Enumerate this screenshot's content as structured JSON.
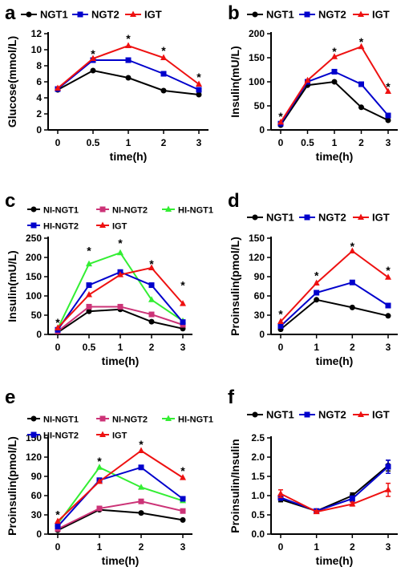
{
  "chart_data": [
    {
      "panel_label": "a",
      "type": "line",
      "x": [
        "0",
        "0.5",
        "1",
        "2",
        "3"
      ],
      "xlabel": "time(h)",
      "ylabel": "Glucose(mmol/L)",
      "ylim": [
        0,
        12
      ],
      "yticks": [
        0,
        2,
        4,
        6,
        8,
        10,
        12
      ],
      "series": [
        {
          "name": "NGT1",
          "color": "#000000",
          "marker": "circle",
          "values": [
            5.0,
            7.4,
            6.5,
            4.9,
            4.4
          ]
        },
        {
          "name": "NGT2",
          "color": "#0000cc",
          "marker": "square",
          "values": [
            5.1,
            8.7,
            8.7,
            7.0,
            5.0
          ]
        },
        {
          "name": "IGT",
          "color": "#ee1111",
          "marker": "triangle",
          "values": [
            5.2,
            8.9,
            10.5,
            9.0,
            5.7
          ]
        }
      ],
      "annotations": [
        {
          "text": "*",
          "x": 1,
          "y": 9.6
        },
        {
          "text": "*",
          "x": 2,
          "y": 11.5
        },
        {
          "text": "*",
          "x": 3,
          "y": 10.0
        },
        {
          "text": "*",
          "x": 4,
          "y": 6.7
        }
      ],
      "legend": "top",
      "grid": false
    },
    {
      "panel_label": "b",
      "type": "line",
      "x": [
        "0",
        "0.5",
        "1",
        "2",
        "3"
      ],
      "xlabel": "time(h)",
      "ylabel": "Insulin(mU/L)",
      "ylim": [
        0,
        200
      ],
      "yticks": [
        0,
        50,
        100,
        150,
        200
      ],
      "series": [
        {
          "name": "NGT1",
          "color": "#000000",
          "marker": "circle",
          "values": [
            10,
            93,
            100,
            47,
            20
          ]
        },
        {
          "name": "NGT2",
          "color": "#0000cc",
          "marker": "square",
          "values": [
            13,
            100,
            121,
            95,
            30
          ]
        },
        {
          "name": "IGT",
          "color": "#ee1111",
          "marker": "triangle",
          "values": [
            16,
            103,
            152,
            173,
            80
          ]
        }
      ],
      "annotations": [
        {
          "text": "*",
          "x": 0,
          "y": 30
        },
        {
          "text": "*",
          "x": 2,
          "y": 165
        },
        {
          "text": "*",
          "x": 3,
          "y": 185
        },
        {
          "text": "*",
          "x": 4,
          "y": 92
        }
      ],
      "legend": "top",
      "grid": false
    },
    {
      "panel_label": "c",
      "type": "line",
      "x": [
        "0",
        "0.5",
        "1",
        "2",
        "3"
      ],
      "xlabel": "time(h)",
      "ylabel": "Insulin(mU/L)",
      "ylim": [
        0,
        250
      ],
      "yticks": [
        0,
        50,
        100,
        150,
        200,
        250
      ],
      "series": [
        {
          "name": "NI-NGT1",
          "color": "#000000",
          "marker": "circle",
          "values": [
            5,
            60,
            65,
            33,
            15
          ]
        },
        {
          "name": "NI-NGT2",
          "color": "#cc3377",
          "marker": "square",
          "values": [
            8,
            72,
            72,
            52,
            25
          ]
        },
        {
          "name": "HI-NGT1",
          "color": "#33ee33",
          "marker": "triangle",
          "values": [
            15,
            183,
            212,
            90,
            35
          ]
        },
        {
          "name": "HI-NGT2",
          "color": "#0000cc",
          "marker": "square",
          "values": [
            12,
            128,
            162,
            128,
            32
          ]
        },
        {
          "name": "IGT",
          "color": "#ee1111",
          "marker": "triangle",
          "values": [
            17,
            103,
            155,
            173,
            80
          ]
        }
      ],
      "annotations": [
        {
          "text": "*",
          "x": 0,
          "y": 33
        },
        {
          "text": "*",
          "x": 1,
          "y": 220
        },
        {
          "text": "*",
          "x": 2,
          "y": 240
        },
        {
          "text": "*",
          "x": 3,
          "y": 185
        },
        {
          "text": "*",
          "x": 4,
          "y": 130
        }
      ],
      "legend": "top",
      "grid": false
    },
    {
      "panel_label": "d",
      "type": "line",
      "x": [
        "0",
        "1",
        "2",
        "3"
      ],
      "xlabel": "time(h)",
      "ylabel": "Proinsulin(pmol/L)",
      "ylim": [
        0,
        150
      ],
      "yticks": [
        0,
        30,
        60,
        90,
        120,
        150
      ],
      "series": [
        {
          "name": "NGT1",
          "color": "#000000",
          "marker": "circle",
          "values": [
            8,
            54,
            42,
            29
          ]
        },
        {
          "name": "NGT2",
          "color": "#0000cc",
          "marker": "square",
          "values": [
            13,
            65,
            81,
            45
          ]
        },
        {
          "name": "IGT",
          "color": "#ee1111",
          "marker": "triangle",
          "values": [
            20,
            80,
            130,
            89
          ]
        }
      ],
      "annotations": [
        {
          "text": "*",
          "x": 0,
          "y": 33
        },
        {
          "text": "*",
          "x": 1,
          "y": 93
        },
        {
          "text": "*",
          "x": 2,
          "y": 139
        },
        {
          "text": "*",
          "x": 3,
          "y": 101
        }
      ],
      "legend": "top",
      "grid": false
    },
    {
      "panel_label": "e",
      "type": "line",
      "x": [
        "0",
        "1",
        "2",
        "3"
      ],
      "xlabel": "time(h)",
      "ylabel": "Proinsulin(pmol/L)",
      "ylim": [
        0,
        150
      ],
      "yticks": [
        0,
        30,
        60,
        90,
        120,
        150
      ],
      "series": [
        {
          "name": "NI-NGT1",
          "color": "#000000",
          "marker": "circle",
          "values": [
            6,
            38,
            33,
            22
          ]
        },
        {
          "name": "NI-NGT2",
          "color": "#cc3377",
          "marker": "square",
          "values": [
            8,
            40,
            51,
            36
          ]
        },
        {
          "name": "HI-NGT1",
          "color": "#33ee33",
          "marker": "triangle",
          "values": [
            16,
            104,
            73,
            52
          ]
        },
        {
          "name": "HI-NGT2",
          "color": "#0000cc",
          "marker": "square",
          "values": [
            12,
            84,
            104,
            55
          ]
        },
        {
          "name": "IGT",
          "color": "#ee1111",
          "marker": "triangle",
          "values": [
            20,
            82,
            130,
            88
          ]
        }
      ],
      "annotations": [
        {
          "text": "*",
          "x": 0,
          "y": 32
        },
        {
          "text": "*",
          "x": 1,
          "y": 115
        },
        {
          "text": "*",
          "x": 2,
          "y": 141
        },
        {
          "text": "*",
          "x": 3,
          "y": 100
        }
      ],
      "legend": "top",
      "grid": false
    },
    {
      "panel_label": "f",
      "type": "line",
      "x": [
        "0",
        "1",
        "2",
        "3"
      ],
      "xlabel": "time(h)",
      "ylabel": "Proinsulin/Insulin",
      "ylim": [
        0,
        2.5
      ],
      "yticks": [
        "0.0",
        "0.5",
        "1.0",
        "1.5",
        "2.0",
        "2.5"
      ],
      "series": [
        {
          "name": "NGT1",
          "color": "#000000",
          "marker": "circle",
          "values": [
            0.9,
            0.6,
            1.0,
            1.78
          ],
          "errors": [
            0.06,
            0.03,
            0.07,
            0.14
          ]
        },
        {
          "name": "NGT2",
          "color": "#0000cc",
          "marker": "square",
          "values": [
            0.95,
            0.6,
            0.92,
            1.75
          ],
          "errors": [
            0.07,
            0.03,
            0.07,
            0.17
          ]
        },
        {
          "name": "IGT",
          "color": "#ee1111",
          "marker": "triangle",
          "values": [
            1.05,
            0.58,
            0.78,
            1.15
          ],
          "errors": [
            0.1,
            0.03,
            0.05,
            0.17
          ]
        }
      ],
      "legend": "top",
      "grid": false
    }
  ]
}
